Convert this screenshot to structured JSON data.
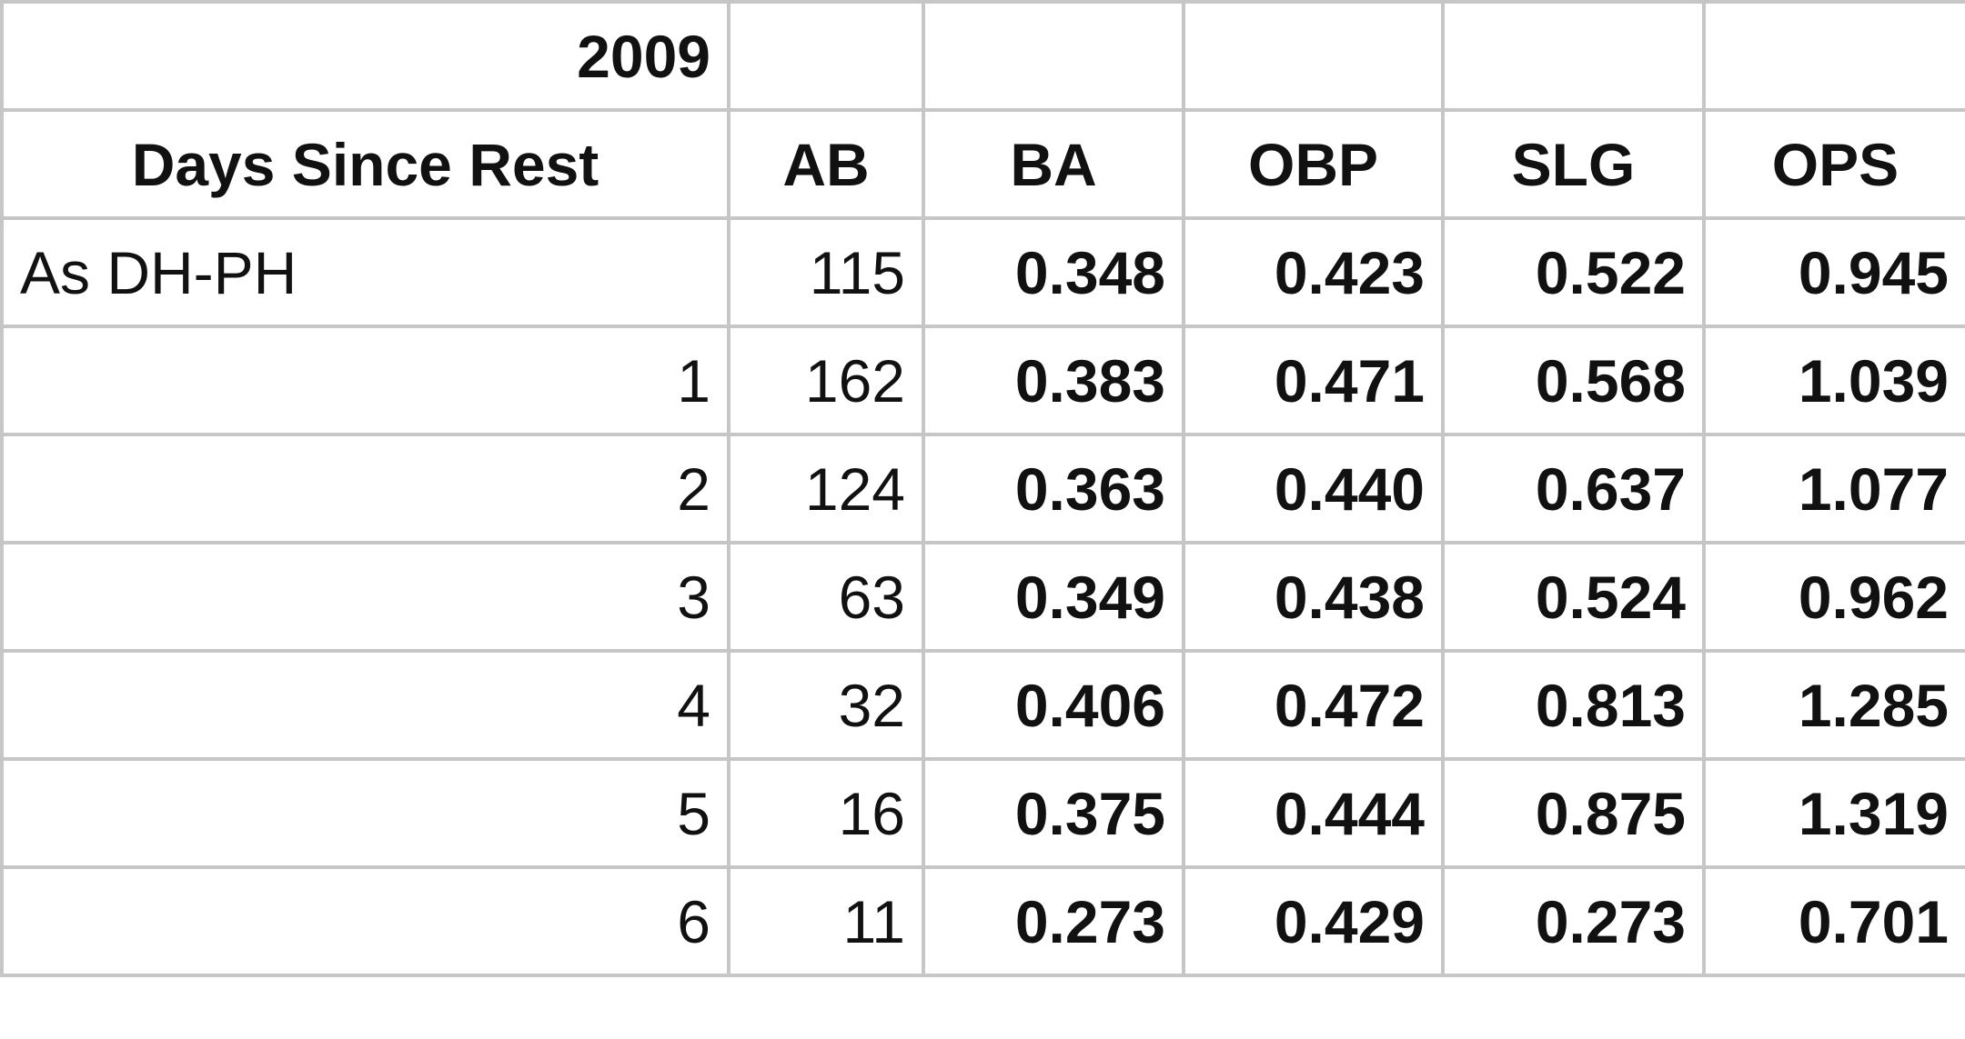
{
  "year": "2009",
  "columns": [
    "Days Since Rest",
    "AB",
    "BA",
    "OBP",
    "SLG",
    "OPS"
  ],
  "rows": [
    [
      "As DH-PH",
      "115",
      "0.348",
      "0.423",
      "0.522",
      "0.945"
    ],
    [
      "1",
      "162",
      "0.383",
      "0.471",
      "0.568",
      "1.039"
    ],
    [
      "2",
      "124",
      "0.363",
      "0.440",
      "0.637",
      "1.077"
    ],
    [
      "3",
      "63",
      "0.349",
      "0.438",
      "0.524",
      "0.962"
    ],
    [
      "4",
      "32",
      "0.406",
      "0.472",
      "0.813",
      "1.285"
    ],
    [
      "5",
      "16",
      "0.375",
      "0.444",
      "0.875",
      "1.319"
    ],
    [
      "6",
      "11",
      "0.273",
      "0.429",
      "0.273",
      "0.701"
    ]
  ]
}
